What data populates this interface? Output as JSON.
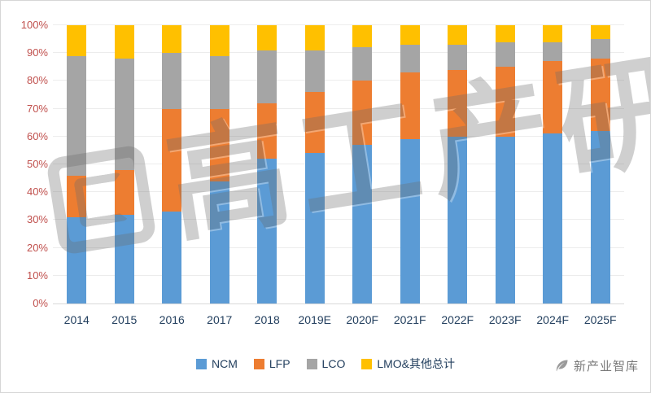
{
  "watermark": {
    "text": "高工产研"
  },
  "brand": {
    "label": "新产业智库"
  },
  "axis": {
    "y_tick_color": "#c0504d",
    "x_label_color": "#24405f"
  },
  "chart_data": {
    "type": "bar",
    "subtype": "100%-stacked-column",
    "title": "",
    "xlabel": "",
    "ylabel": "",
    "ylim": [
      0,
      100
    ],
    "grid": true,
    "legend_position": "bottom",
    "y_ticks": [
      "0%",
      "10%",
      "20%",
      "30%",
      "40%",
      "50%",
      "60%",
      "70%",
      "80%",
      "90%",
      "100%"
    ],
    "categories": [
      "2014",
      "2015",
      "2016",
      "2017",
      "2018",
      "2019E",
      "2020F",
      "2021F",
      "2022F",
      "2023F",
      "2024F",
      "2025F"
    ],
    "series": [
      {
        "name": "NCM",
        "color": "#5B9BD5",
        "values": [
          31,
          32,
          33,
          44,
          52,
          54,
          57,
          59,
          60,
          60,
          61,
          62
        ]
      },
      {
        "name": "LFP",
        "color": "#ED7D31",
        "values": [
          15,
          16,
          37,
          26,
          20,
          22,
          23,
          24,
          24,
          25,
          26,
          26
        ]
      },
      {
        "name": "LCO",
        "color": "#A5A5A5",
        "values": [
          43,
          40,
          20,
          19,
          19,
          15,
          12,
          10,
          9,
          9,
          7,
          7
        ]
      },
      {
        "name": "LMO&其他总计",
        "color": "#FFC000",
        "values": [
          11,
          12,
          10,
          11,
          9,
          9,
          8,
          7,
          7,
          6,
          6,
          5
        ]
      }
    ]
  }
}
